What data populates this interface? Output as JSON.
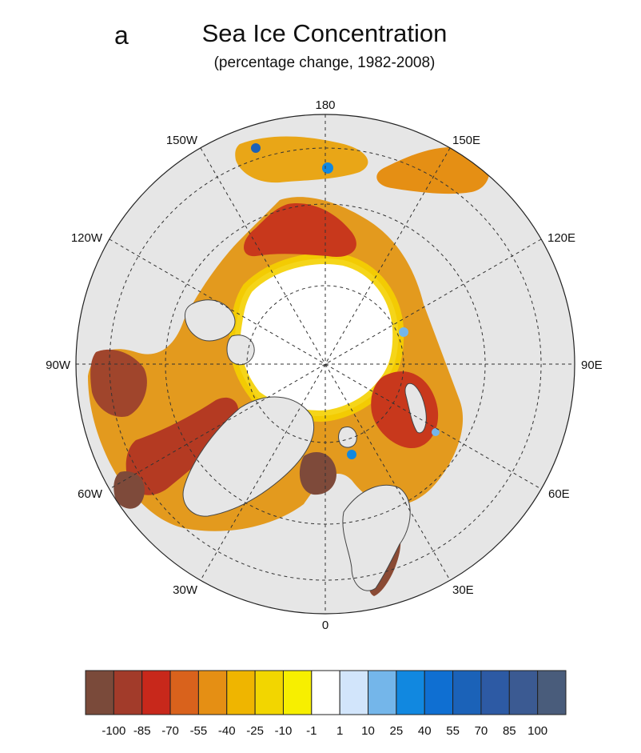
{
  "figure": {
    "panel_letter": "a",
    "title": "Sea Ice Concentration",
    "subtitle": "(percentage change, 1982-2008)"
  },
  "map": {
    "projection": "north-polar-stereographic",
    "graticule": "dashed",
    "longitude_labels": [
      {
        "text": "180",
        "lon": 180
      },
      {
        "text": "150E",
        "lon": 150
      },
      {
        "text": "120E",
        "lon": 120
      },
      {
        "text": "90E",
        "lon": 90
      },
      {
        "text": "60E",
        "lon": 60
      },
      {
        "text": "30E",
        "lon": 30
      },
      {
        "text": "0",
        "lon": 0
      },
      {
        "text": "30W",
        "lon": -30
      },
      {
        "text": "60W",
        "lon": -60
      },
      {
        "text": "90W",
        "lon": -90
      },
      {
        "text": "120W",
        "lon": -120
      },
      {
        "text": "150W",
        "lon": -150
      }
    ],
    "land_color": "#e6e6e6",
    "ocean_no_change_color": "#ffffff"
  },
  "colorbar": {
    "colors": [
      "#7a4a3a",
      "#a23b2a",
      "#c8281b",
      "#d9621c",
      "#e58f14",
      "#efb500",
      "#f2d600",
      "#f7ef00",
      "#ffffff",
      "#d2e5fb",
      "#74b6ea",
      "#1188e0",
      "#0f6fd2",
      "#1b62b8",
      "#2d5aa4",
      "#3b5a92",
      "#495c7b"
    ],
    "labels": [
      "-100",
      "-85",
      "-70",
      "-55",
      "-40",
      "-25",
      "-10",
      "-1",
      "1",
      "10",
      "25",
      "40",
      "55",
      "70",
      "85",
      "100"
    ]
  }
}
